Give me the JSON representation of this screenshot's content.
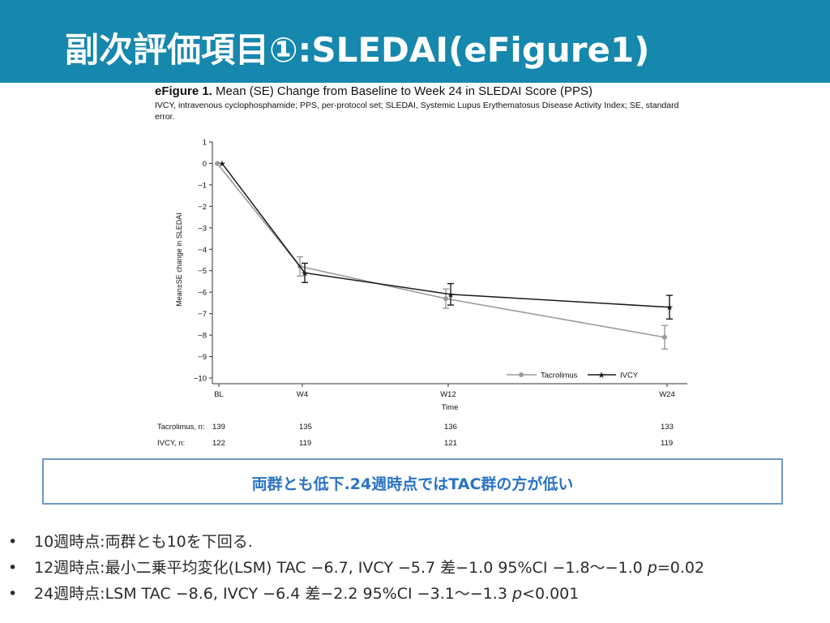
{
  "slide": {
    "title": "副次評価項目①:SLEDAI(eFigure1)",
    "colors": {
      "title_bar": "#1687ad",
      "callout_border": "#6f97c9",
      "callout_text": "#2a73c4"
    }
  },
  "figure": {
    "title_bold": "eFigure 1.",
    "title_rest": " Mean (SE) Change from Baseline to Week 24 in SLEDAI Score (PPS)",
    "note": "IVCY, intravenous cyclophosphamide; PPS, per-protocol set; SLEDAI, Systemic Lupus Erythematosus Disease Activity Index; SE, standard error."
  },
  "chart_data": {
    "type": "line",
    "xlabel": "Time",
    "ylabel": "Mean±SE change in SLEDAI",
    "ylim": [
      -10,
      1
    ],
    "yticks": [
      "1",
      "0",
      "−1",
      "−2",
      "−3",
      "−4",
      "−5",
      "−6",
      "−7",
      "−8",
      "−9",
      "−10"
    ],
    "categories": [
      "BL",
      "W4",
      "W12",
      "W24"
    ],
    "legend_position": "bottom-right",
    "grid": false,
    "series": [
      {
        "name": "Tacrolimus",
        "color": "#9a9a9a",
        "marker": "circle",
        "values": [
          0,
          -4.8,
          -6.3,
          -8.1
        ],
        "se": [
          0,
          0.45,
          0.45,
          0.55
        ]
      },
      {
        "name": "IVCY",
        "color": "#1a1a1a",
        "marker": "star",
        "values": [
          0,
          -5.1,
          -6.1,
          -6.7
        ],
        "se": [
          0,
          0.45,
          0.5,
          0.55
        ]
      }
    ],
    "n_table": [
      {
        "label": "Tacrolimus, n:",
        "values": [
          "139",
          "135",
          "136",
          "133"
        ]
      },
      {
        "label": "IVCY, n:",
        "values": [
          "122",
          "119",
          "121",
          "119"
        ]
      }
    ]
  },
  "callout": {
    "text": "両群とも低下.24週時点ではTAC群の方が低い"
  },
  "bullets": [
    {
      "marker": "•",
      "text": "10週時点:両群とも10を下回る.",
      "p": "",
      "tail": ""
    },
    {
      "marker": "•",
      "text": "12週時点:最小二乗平均変化(LSM) TAC −6.7, IVCY −5.7 差−1.0 95%CI −1.8〜−1.0 ",
      "p": "p",
      "tail": "=0.02"
    },
    {
      "marker": "•",
      "text": "24週時点:LSM TAC −8.6, IVCY −6.4 差−2.2 95%CI −3.1〜−1.3 ",
      "p": "p",
      "tail": "<0.001"
    }
  ]
}
